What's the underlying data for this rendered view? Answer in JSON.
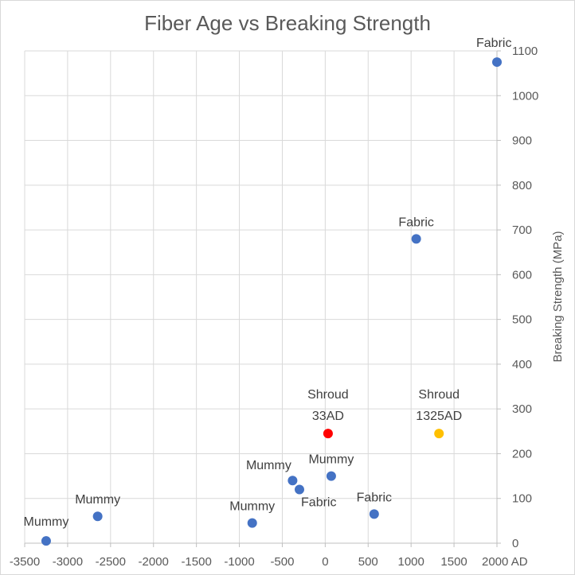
{
  "chart_data": {
    "type": "scatter",
    "title": "Fiber Age vs Breaking Strength",
    "xlabel": "",
    "ylabel": "Breaking Strength (MPa)",
    "xlim": [
      -3500,
      2000
    ],
    "ylim": [
      0,
      1100
    ],
    "x_ticks": [
      "-3500",
      "-3000",
      "-2500",
      "-2000",
      "-1500",
      "-1000",
      "-500",
      "0",
      "500",
      "1000",
      "1500",
      "2000 AD"
    ],
    "y_ticks": [
      "0",
      "100",
      "200",
      "300",
      "400",
      "500",
      "600",
      "700",
      "800",
      "900",
      "1000",
      "1100"
    ],
    "grid": true,
    "legend": "none",
    "colors": {
      "default": "#4472c4",
      "shroud_33": "#ff0000",
      "shroud_1325": "#ffc000",
      "grid": "#d9d9d9",
      "axis": "#bfbfbf"
    },
    "points": [
      {
        "x": -3250,
        "y": 5,
        "label": "Mummy",
        "color": "default"
      },
      {
        "x": -2650,
        "y": 60,
        "label": "Mummy",
        "color": "default"
      },
      {
        "x": -850,
        "y": 45,
        "label": "Mummy",
        "color": "default"
      },
      {
        "x": -380,
        "y": 140,
        "label": "Mummy",
        "color": "default"
      },
      {
        "x": -300,
        "y": 120,
        "label": "Fabric",
        "color": "default"
      },
      {
        "x": 70,
        "y": 150,
        "label": "Mummy",
        "color": "default"
      },
      {
        "x": 570,
        "y": 65,
        "label": "Fabric",
        "color": "default"
      },
      {
        "x": 1060,
        "y": 680,
        "label": "Fabric",
        "color": "default"
      },
      {
        "x": 2000,
        "y": 1075,
        "label": "Fabric",
        "color": "default"
      },
      {
        "x": 33,
        "y": 245,
        "label": "Shroud 33AD",
        "label_lines": [
          "Shroud",
          "33AD"
        ],
        "color": "shroud_33"
      },
      {
        "x": 1325,
        "y": 245,
        "label": "Shroud 1325AD",
        "label_lines": [
          "Shroud",
          "1325AD"
        ],
        "color": "shroud_1325"
      }
    ]
  }
}
